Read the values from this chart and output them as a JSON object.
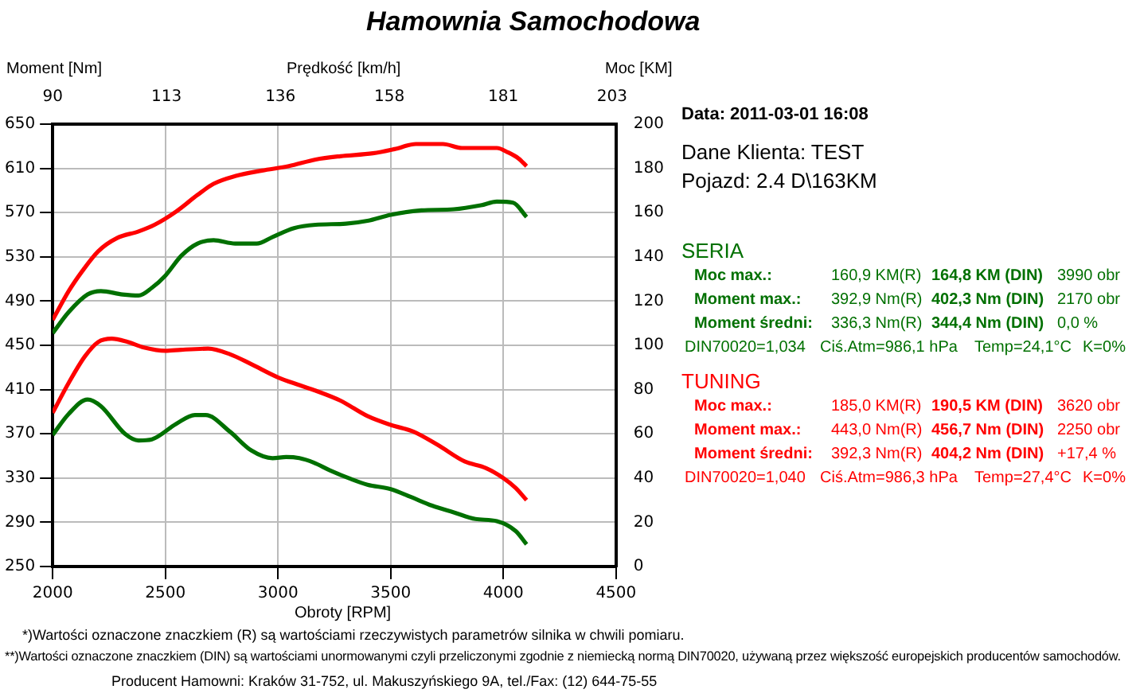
{
  "chart_data": {
    "type": "line",
    "title": "Hamownia Samochodowa",
    "xlabel": "Obroty [RPM]",
    "ylabel": "Moment [Nm]",
    "y2label": "Moc [KM]",
    "x2label": "Prędkość [km/h]",
    "xlim": [
      2000,
      4500
    ],
    "xticks": [
      2000,
      2500,
      3000,
      3500,
      4000,
      4500
    ],
    "ylim": [
      250,
      650
    ],
    "yticks": [
      250,
      290,
      330,
      370,
      410,
      450,
      490,
      530,
      570,
      610,
      650
    ],
    "y2lim": [
      0,
      200
    ],
    "y2ticks": [
      0,
      20,
      40,
      60,
      80,
      100,
      120,
      140,
      160,
      180,
      200
    ],
    "x2lim": [
      90,
      203.8
    ],
    "x2ticks": [
      90,
      113,
      136,
      158,
      181,
      203
    ],
    "grid": true,
    "series": [
      {
        "color": "#007000",
        "axis": "y2",
        "x": [
          2000,
          2071,
          2155,
          2214,
          2310,
          2381,
          2440,
          2500,
          2571,
          2643,
          2714,
          2810,
          2905,
          2976,
          3071,
          3167,
          3301,
          3397,
          3500,
          3636,
          3780,
          3900,
          3971,
          4043,
          4103
        ],
        "values": [
          105.5,
          115,
          123,
          124.5,
          123,
          122.5,
          126,
          131.5,
          140.5,
          146,
          147.5,
          146,
          146,
          149,
          153,
          154.5,
          155,
          156.3,
          159,
          161,
          161.5,
          163.3,
          165,
          164.5,
          158
        ]
      },
      {
        "color": "#ff0000",
        "axis": "y2",
        "x": [
          2000,
          2071,
          2131,
          2202,
          2286,
          2381,
          2452,
          2548,
          2643,
          2714,
          2810,
          2929,
          3048,
          3167,
          3277,
          3421,
          3517,
          3612,
          3732,
          3816,
          3971,
          4019,
          4067,
          4103
        ],
        "values": [
          111.5,
          124.5,
          133.5,
          142.5,
          148.5,
          151.5,
          154.5,
          160.5,
          168,
          173,
          176.5,
          179,
          181,
          184,
          185.5,
          186.8,
          188.7,
          191,
          191,
          189.2,
          189.2,
          187.3,
          184.5,
          181
        ]
      },
      {
        "color": "#007000",
        "axis": "y",
        "x": [
          2000,
          2071,
          2155,
          2214,
          2321,
          2381,
          2440,
          2548,
          2631,
          2679,
          2786,
          2881,
          2976,
          3036,
          3095,
          3158,
          3230,
          3325,
          3397,
          3500,
          3588,
          3684,
          3780,
          3876,
          3971,
          4055,
          4103
        ],
        "values": [
          369,
          388,
          401,
          395,
          370,
          364,
          365,
          379,
          387,
          387,
          372,
          355,
          348,
          349,
          348,
          344,
          337,
          329,
          324,
          320,
          313,
          305,
          299,
          293,
          291,
          282,
          270
        ]
      },
      {
        "color": "#ff0000",
        "axis": "y",
        "x": [
          2000,
          2071,
          2143,
          2202,
          2262,
          2333,
          2405,
          2500,
          2571,
          2690,
          2786,
          2881,
          3000,
          3095,
          3167,
          3277,
          3397,
          3500,
          3600,
          3708,
          3828,
          3923,
          4000,
          4055,
          4103
        ],
        "values": [
          389,
          416,
          440,
          453,
          456,
          453,
          448,
          445,
          446,
          447,
          442,
          433,
          421,
          414,
          409,
          400,
          386,
          378,
          372,
          360,
          345,
          339,
          330,
          321,
          310
        ]
      }
    ],
    "annotations": [
      "Data: 2011-03-01  16:08",
      "Dane Klienta: TEST",
      "Pojazd: 2.4 D\\163KM",
      "SERIA",
      "Moc max.:",
      "160,9 KM(R)",
      "164,8 KM (DIN)",
      "3990 obr",
      "Moment max.:",
      "392,9 Nm(R)",
      "402,3 Nm (DIN)",
      "2170 obr",
      "Moment średni:",
      "336,3 Nm(R)",
      "344,4 Nm (DIN)",
      "0,0 %",
      "DIN70020=1,034",
      "Ciś.Atm=986,1 hPa",
      "Temp=24,1°C",
      "K=0%",
      "TUNING",
      "Moc max.:",
      "185,0 KM(R)",
      "190,5 KM (DIN)",
      "3620 obr",
      "Moment max.:",
      "443,0 Nm(R)",
      "456,7 Nm (DIN)",
      "2250 obr",
      "Moment średni:",
      "392,3 Nm(R)",
      "404,2 Nm (DIN)",
      "+17,4 %",
      "DIN70020=1,040",
      "Ciś.Atm=986,3 hPa",
      "Temp=27,4°C",
      "K=0%",
      "*)Wartości oznaczone znaczkiem (R) są wartościami rzeczywistych parametrów silnika w chwili pomiaru.",
      "**)Wartości oznaczone znaczkiem (DIN) są wartościami unormowanymi czyli przeliczonymi zgodnie z niemiecką normą DIN70020, używaną przez większość europejskich producentów samochodów.",
      "Producent Hamowni: Kraków 31-752, ul. Makuszyńskiego 9A, tel./Fax: (12) 644-75-55"
    ]
  }
}
